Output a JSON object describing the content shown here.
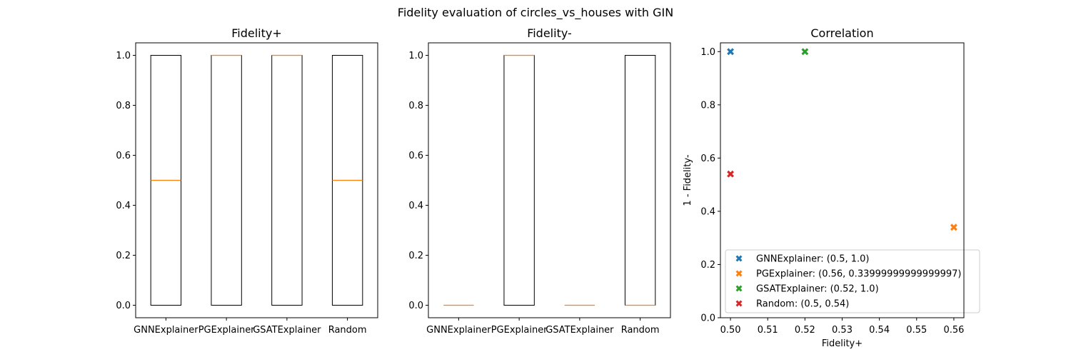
{
  "suptitle": "Fidelity evaluation of circles_vs_houses with GIN",
  "chart_data": [
    {
      "type": "box",
      "title": "Fidelity+",
      "xlabel": "",
      "ylabel": "",
      "ylim": [
        -0.05,
        1.05
      ],
      "yticks": [
        0.0,
        0.2,
        0.4,
        0.6,
        0.8,
        1.0
      ],
      "ytick_labels": [
        "0.0",
        "0.2",
        "0.4",
        "0.6",
        "0.8",
        "1.0"
      ],
      "categories": [
        "GNNExplainer",
        "PGExplainer",
        "GSATExplainer",
        "Random"
      ],
      "boxes": [
        {
          "q1": 0.0,
          "median": 0.5,
          "q3": 1.0,
          "whisker_low": 0.0,
          "whisker_high": 1.0
        },
        {
          "q1": 0.0,
          "median": 1.0,
          "q3": 1.0,
          "whisker_low": 0.0,
          "whisker_high": 1.0
        },
        {
          "q1": 0.0,
          "median": 1.0,
          "q3": 1.0,
          "whisker_low": 0.0,
          "whisker_high": 1.0
        },
        {
          "q1": 0.0,
          "median": 0.5,
          "q3": 1.0,
          "whisker_low": 0.0,
          "whisker_high": 1.0
        }
      ]
    },
    {
      "type": "box",
      "title": "Fidelity-",
      "xlabel": "",
      "ylabel": "",
      "ylim": [
        -0.05,
        1.05
      ],
      "yticks": [
        0.0,
        0.2,
        0.4,
        0.6,
        0.8,
        1.0
      ],
      "ytick_labels": [
        "0.0",
        "0.2",
        "0.4",
        "0.6",
        "0.8",
        "1.0"
      ],
      "categories": [
        "GNNExplainer",
        "PGExplainer",
        "GSATExplainer",
        "Random"
      ],
      "boxes": [
        {
          "q1": 0.0,
          "median": 0.0,
          "q3": 0.0,
          "whisker_low": 0.0,
          "whisker_high": 0.0
        },
        {
          "q1": 0.0,
          "median": 1.0,
          "q3": 1.0,
          "whisker_low": 0.0,
          "whisker_high": 1.0
        },
        {
          "q1": 0.0,
          "median": 0.0,
          "q3": 0.0,
          "whisker_low": 0.0,
          "whisker_high": 0.0
        },
        {
          "q1": 0.0,
          "median": 0.0,
          "q3": 1.0,
          "whisker_low": 0.0,
          "whisker_high": 1.0
        }
      ]
    },
    {
      "type": "scatter",
      "title": "Correlation",
      "xlabel": "Fidelity+",
      "ylabel": "1 - Fidelity-",
      "xlim": [
        0.4973,
        0.5627
      ],
      "ylim": [
        0.0,
        1.033
      ],
      "xticks": [
        0.5,
        0.51,
        0.52,
        0.53,
        0.54,
        0.55,
        0.56
      ],
      "xtick_labels": [
        "0.50",
        "0.51",
        "0.52",
        "0.53",
        "0.54",
        "0.55",
        "0.56"
      ],
      "yticks": [
        0.0,
        0.2,
        0.4,
        0.6,
        0.8,
        1.0
      ],
      "ytick_labels": [
        "0.0",
        "0.2",
        "0.4",
        "0.6",
        "0.8",
        "1.0"
      ],
      "legend_position": "lower-left",
      "series": [
        {
          "name": "GNNExplainer: (0.5, 1.0)",
          "x": 0.5,
          "y": 1.0,
          "color": "#1f77b4"
        },
        {
          "name": "PGExplainer: (0.56, 0.33999999999999997)",
          "x": 0.56,
          "y": 0.34,
          "color": "#ff7f0e"
        },
        {
          "name": "GSATExplainer: (0.52, 1.0)",
          "x": 0.52,
          "y": 1.0,
          "color": "#2ca02c"
        },
        {
          "name": "Random: (0.5, 0.54)",
          "x": 0.5,
          "y": 0.54,
          "color": "#d62728"
        }
      ]
    }
  ],
  "colors": {
    "median": "#ff7f0e",
    "box": "#000000"
  }
}
